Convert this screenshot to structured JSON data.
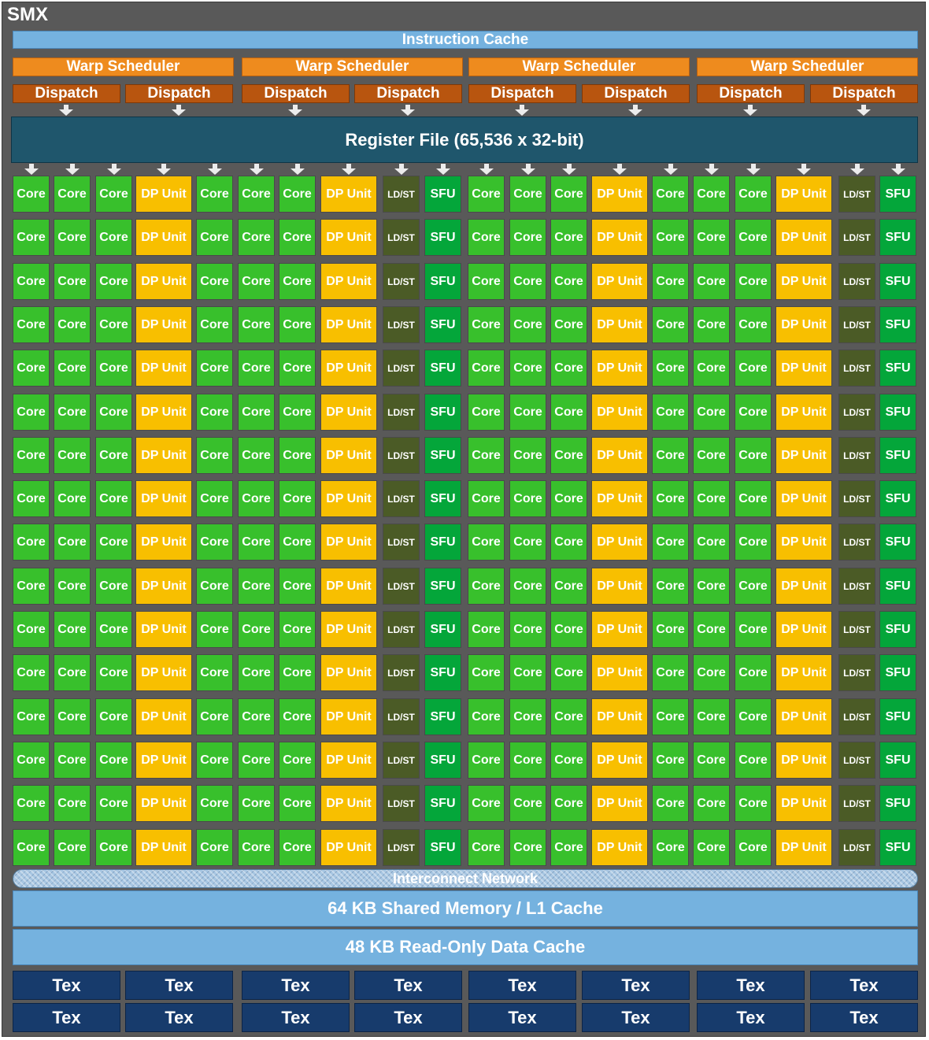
{
  "title": "SMX",
  "instruction_cache": "Instruction Cache",
  "warp_schedulers": [
    "Warp Scheduler",
    "Warp Scheduler",
    "Warp Scheduler",
    "Warp Scheduler"
  ],
  "dispatch_units": [
    "Dispatch",
    "Dispatch",
    "Dispatch",
    "Dispatch",
    "Dispatch",
    "Dispatch",
    "Dispatch",
    "Dispatch"
  ],
  "register_file": "Register File (65,536 x 32-bit)",
  "unit_labels": {
    "core": "Core",
    "dp": "DP Unit",
    "ldst": "LD/ST",
    "sfu": "SFU"
  },
  "unit_columns": [
    "core",
    "core",
    "core",
    "dp",
    "core",
    "core",
    "core",
    "dp",
    "ldst",
    "sfu",
    "core",
    "core",
    "core",
    "dp",
    "core",
    "core",
    "core",
    "dp",
    "ldst",
    "sfu"
  ],
  "unit_rows": 16,
  "interconnect": "Interconnect Network",
  "shared_memory": "64 KB Shared Memory / L1 Cache",
  "readonly_cache": "48 KB Read-Only Data Cache",
  "tex_units": [
    [
      "Tex",
      "Tex",
      "Tex",
      "Tex",
      "Tex",
      "Tex",
      "Tex",
      "Tex"
    ],
    [
      "Tex",
      "Tex",
      "Tex",
      "Tex",
      "Tex",
      "Tex",
      "Tex",
      "Tex"
    ]
  ]
}
